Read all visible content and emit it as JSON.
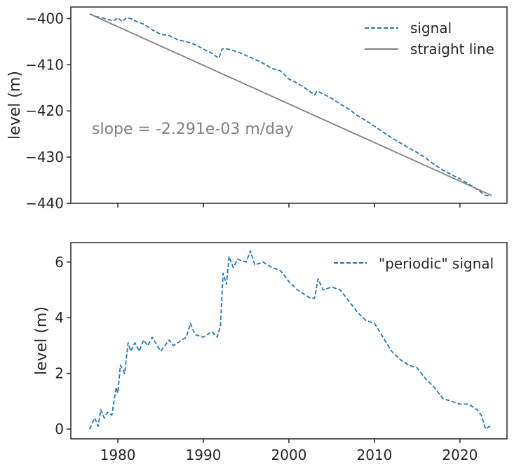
{
  "chart_data": [
    {
      "type": "line",
      "ylabel": "level (m)",
      "xlim": [
        1974.5,
        2025.5
      ],
      "ylim": [
        -440,
        -397.5
      ],
      "yticks": [
        -400,
        -410,
        -420,
        -430,
        -440
      ],
      "ytick_labels": [
        "−400",
        "−410",
        "−420",
        "−430",
        "−440"
      ],
      "xticks": [
        1980,
        1990,
        2000,
        2010,
        2020
      ],
      "xtick_labels_shown": false,
      "annotation": "slope = -2.291e-03 m/day",
      "legend_position": "top-right",
      "series": [
        {
          "name": "signal",
          "style": "dashed",
          "color": "#1f77b4",
          "x": [
            1976.7,
            1977.5,
            1978.5,
            1979.5,
            1980.0,
            1980.5,
            1981.0,
            1981.5,
            1982.0,
            1983.0,
            1984.0,
            1985.0,
            1986.0,
            1987.0,
            1988.0,
            1989.0,
            1990.0,
            1991.0,
            1991.8,
            1992.2,
            1992.6,
            1993.0,
            1994.0,
            1995.0,
            1996.0,
            1997.0,
            1998.0,
            1999.0,
            2000.0,
            2001.0,
            2002.0,
            2003.0,
            2003.3,
            2004.0,
            2005.0,
            2006.0,
            2007.0,
            2008.0,
            2009.0,
            2010.0,
            2011.0,
            2012.0,
            2013.0,
            2014.0,
            2015.0,
            2016.0,
            2017.0,
            2018.0,
            2019.0,
            2020.0,
            2021.0,
            2022.0,
            2023.0,
            2023.7
          ],
          "y": [
            -399.0,
            -399.6,
            -400.0,
            -400.5,
            -399.8,
            -400.7,
            -399.8,
            -400.0,
            -400.5,
            -401.2,
            -402.4,
            -403.4,
            -403.7,
            -404.6,
            -405.0,
            -405.6,
            -406.6,
            -407.5,
            -408.6,
            -406.6,
            -406.5,
            -406.7,
            -407.2,
            -408.0,
            -408.8,
            -409.7,
            -410.8,
            -411.3,
            -413.1,
            -414.0,
            -415.2,
            -416.5,
            -415.7,
            -416.3,
            -417.3,
            -418.5,
            -419.6,
            -421.0,
            -422.1,
            -423.3,
            -424.6,
            -425.8,
            -426.9,
            -428.0,
            -429.0,
            -430.2,
            -431.6,
            -432.8,
            -433.8,
            -434.7,
            -435.8,
            -437.0,
            -438.3,
            -438.3
          ]
        },
        {
          "name": "straight line",
          "style": "solid",
          "color": "#808080",
          "x": [
            1976.7,
            2023.7
          ],
          "y": [
            -399.0,
            -438.3
          ]
        }
      ]
    },
    {
      "type": "line",
      "xlabel": "",
      "ylabel": "level (m)",
      "xlim": [
        1974.5,
        2025.5
      ],
      "ylim": [
        -0.35,
        6.7
      ],
      "yticks": [
        0,
        2,
        4,
        6
      ],
      "ytick_labels": [
        "0",
        "2",
        "4",
        "6"
      ],
      "xticks": [
        1980,
        1990,
        2000,
        2010,
        2020
      ],
      "xtick_labels": [
        "1980",
        "1990",
        "2000",
        "2010",
        "2020"
      ],
      "legend_position": "top-right",
      "series": [
        {
          "name": "\"periodic\" signal",
          "style": "dashed",
          "color": "#1f77b4",
          "x": [
            1976.7,
            1977.3,
            1977.7,
            1978.0,
            1978.4,
            1978.8,
            1979.3,
            1979.8,
            1980.0,
            1980.3,
            1980.8,
            1981.2,
            1981.5,
            1982.0,
            1982.5,
            1983.0,
            1983.5,
            1984.0,
            1985.0,
            1986.0,
            1986.5,
            1987.0,
            1988.0,
            1988.5,
            1989.0,
            1990.0,
            1991.0,
            1991.6,
            1992.0,
            1992.3,
            1992.7,
            1993.0,
            1993.5,
            1994.0,
            1995.0,
            1995.5,
            1996.0,
            1997.0,
            1998.0,
            1999.0,
            2000.0,
            2001.0,
            2001.5,
            2002.0,
            2002.5,
            2003.0,
            2003.4,
            2004.0,
            2005.0,
            2006.0,
            2007.0,
            2008.0,
            2009.0,
            2010.0,
            2011.0,
            2012.0,
            2013.0,
            2014.0,
            2015.0,
            2016.0,
            2017.0,
            2018.0,
            2019.0,
            2020.0,
            2021.0,
            2022.0,
            2022.5,
            2023.0,
            2023.7
          ],
          "y": [
            0.0,
            0.4,
            0.1,
            0.7,
            0.4,
            0.6,
            0.5,
            1.5,
            1.3,
            2.3,
            2.0,
            3.1,
            2.8,
            3.1,
            2.8,
            3.2,
            3.0,
            3.3,
            2.8,
            3.2,
            3.0,
            3.1,
            3.3,
            3.8,
            3.4,
            3.3,
            3.5,
            3.3,
            3.7,
            5.6,
            5.2,
            6.2,
            5.8,
            6.1,
            6.0,
            6.4,
            5.9,
            6.0,
            5.8,
            5.7,
            5.3,
            5.0,
            4.9,
            4.8,
            4.7,
            4.7,
            5.4,
            5.0,
            5.1,
            5.0,
            4.6,
            4.2,
            3.9,
            3.8,
            3.3,
            2.8,
            2.5,
            2.3,
            2.2,
            1.8,
            1.5,
            1.1,
            1.0,
            0.9,
            0.9,
            0.7,
            0.5,
            0.0,
            0.15
          ]
        }
      ]
    }
  ]
}
